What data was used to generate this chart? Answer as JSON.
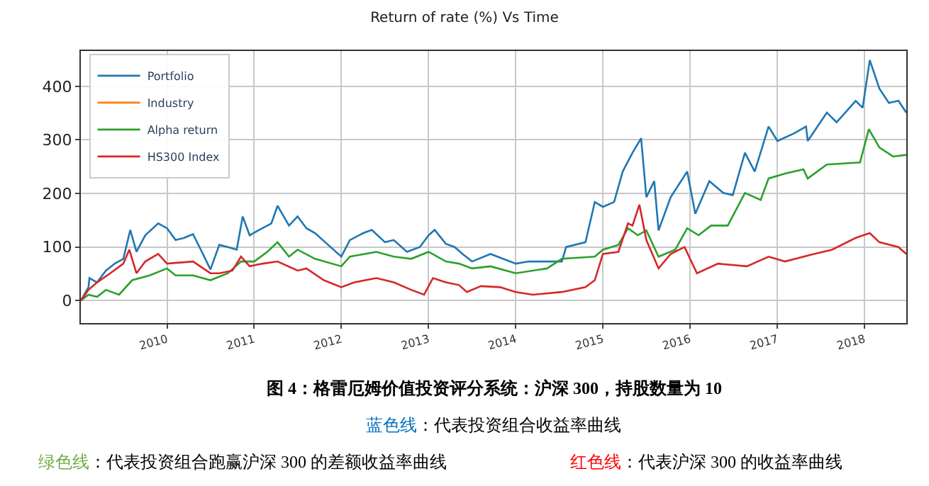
{
  "chart_data": {
    "type": "line",
    "title": "Return of rate (%) Vs Time",
    "xlim": [
      "2009-01-05",
      "2018-06-25"
    ],
    "xticks": [
      "2010",
      "2011",
      "2012",
      "2013",
      "2014",
      "2015",
      "2016",
      "2017",
      "2018"
    ],
    "ylim": [
      -42,
      466
    ],
    "yticks": [
      0,
      100,
      200,
      300,
      400
    ],
    "grid": true,
    "legend": "top left",
    "series": [
      {
        "name": "Portfolio",
        "color": "#1f77b4",
        "x": [
          "2009-01-05",
          "2009-02-06",
          "2009-02-10",
          "2009-03-14",
          "2009-04-20",
          "2009-05-27",
          "2009-07-02",
          "2009-07-31",
          "2009-08-26",
          "2009-10-02",
          "2009-11-25",
          "2010-01-01",
          "2010-02-06",
          "2010-03-14",
          "2010-04-20",
          "2010-05-27",
          "2010-07-02",
          "2010-08-08",
          "2010-09-13",
          "2010-10-20",
          "2010-11-14",
          "2010-12-13",
          "2011-01-19",
          "2011-03-14",
          "2011-04-09",
          "2011-05-27",
          "2011-07-02",
          "2011-08-08",
          "2011-09-13",
          "2011-11-07",
          "2012-01-01",
          "2012-02-06",
          "2012-04-02",
          "2012-05-08",
          "2012-07-02",
          "2012-08-08",
          "2012-10-02",
          "2012-11-25",
          "2013-01-01",
          "2013-01-26",
          "2013-03-14",
          "2013-04-20",
          "2013-05-23",
          "2013-07-02",
          "2013-09-17",
          "2014-01-01",
          "2014-02-25",
          "2014-04-24",
          "2014-07-13",
          "2014-07-31",
          "2014-10-20",
          "2014-11-28",
          "2015-01-01",
          "2015-02-17",
          "2015-03-25",
          "2015-05-05",
          "2015-06-10",
          "2015-07-02",
          "2015-08-04",
          "2015-08-22",
          "2015-10-12",
          "2015-12-20",
          "2016-01-23",
          "2016-03-22",
          "2016-05-19",
          "2016-06-28",
          "2016-08-18",
          "2016-09-28",
          "2016-11-25",
          "2017-01-01",
          "2017-03-11",
          "2017-05-01",
          "2017-05-08",
          "2017-07-27",
          "2017-09-06",
          "2017-11-25",
          "2017-12-24",
          "2018-01-23",
          "2018-03-04",
          "2018-04-13",
          "2018-05-23",
          "2018-06-25"
        ],
        "values": [
          0,
          25,
          42,
          34,
          56,
          69,
          78,
          132,
          91,
          122,
          144,
          135,
          113,
          117,
          124,
          91,
          58,
          104,
          100,
          95,
          157,
          122,
          131,
          144,
          177,
          140,
          157,
          135,
          126,
          104,
          82,
          113,
          126,
          132,
          109,
          113,
          91,
          100,
          122,
          132,
          106,
          100,
          87,
          73,
          87,
          69,
          73,
          73,
          73,
          100,
          109,
          184,
          175,
          184,
          241,
          276,
          303,
          193,
          223,
          131,
          193,
          241,
          162,
          223,
          201,
          197,
          276,
          241,
          325,
          298,
          312,
          325,
          298,
          351,
          333,
          373,
          360,
          449,
          396,
          369,
          373,
          351
        ]
      },
      {
        "name": "Industry",
        "color": "#ff7f0e"
      },
      {
        "name": "Alpha return",
        "color": "#2ca02c",
        "x": [
          "2009-01-05",
          "2009-02-06",
          "2009-03-14",
          "2009-04-20",
          "2009-06-14",
          "2009-08-08",
          "2009-10-20",
          "2010-01-01",
          "2010-02-06",
          "2010-04-20",
          "2010-07-02",
          "2010-09-13",
          "2010-11-07",
          "2011-01-01",
          "2011-02-25",
          "2011-04-09",
          "2011-05-27",
          "2011-07-02",
          "2011-09-13",
          "2012-01-01",
          "2012-02-06",
          "2012-05-27",
          "2012-08-08",
          "2012-10-20",
          "2013-01-01",
          "2013-03-14",
          "2013-05-08",
          "2013-07-02",
          "2013-09-17",
          "2014-01-01",
          "2014-05-12",
          "2014-07-13",
          "2014-11-28",
          "2015-01-01",
          "2015-03-07",
          "2015-04-16",
          "2015-05-27",
          "2015-07-02",
          "2015-08-22",
          "2015-10-31",
          "2015-12-20",
          "2016-02-06",
          "2016-03-29",
          "2016-06-07",
          "2016-08-18",
          "2016-10-23",
          "2016-11-25",
          "2017-02-02",
          "2017-04-20",
          "2017-05-08",
          "2017-07-27",
          "2017-12-13",
          "2018-01-19",
          "2018-03-04",
          "2018-05-01",
          "2018-06-25"
        ],
        "values": [
          0,
          11,
          7,
          20,
          11,
          38,
          47,
          60,
          47,
          47,
          38,
          51,
          73,
          73,
          91,
          109,
          82,
          95,
          78,
          64,
          82,
          91,
          82,
          78,
          91,
          73,
          69,
          60,
          64,
          51,
          60,
          78,
          82,
          95,
          104,
          135,
          122,
          131,
          82,
          95,
          135,
          122,
          140,
          140,
          201,
          188,
          228,
          237,
          245,
          228,
          254,
          258,
          320,
          286,
          269,
          272
        ]
      },
      {
        "name": "HS300 Index",
        "color": "#d62728",
        "x": [
          "2009-01-05",
          "2009-02-06",
          "2009-03-14",
          "2009-05-08",
          "2009-07-02",
          "2009-07-27",
          "2009-08-26",
          "2009-10-02",
          "2009-11-25",
          "2010-01-01",
          "2010-04-20",
          "2010-07-02",
          "2010-08-08",
          "2010-10-02",
          "2010-11-07",
          "2010-12-13",
          "2011-02-06",
          "2011-04-09",
          "2011-07-02",
          "2011-08-08",
          "2011-10-20",
          "2012-01-01",
          "2012-02-25",
          "2012-05-27",
          "2012-08-08",
          "2012-10-20",
          "2012-12-13",
          "2013-01-19",
          "2013-03-14",
          "2013-05-08",
          "2013-06-10",
          "2013-08-08",
          "2013-10-27",
          "2014-01-01",
          "2014-03-14",
          "2014-07-13",
          "2014-10-20",
          "2014-11-28",
          "2015-01-01",
          "2015-03-07",
          "2015-04-16",
          "2015-05-05",
          "2015-06-03",
          "2015-07-02",
          "2015-08-22",
          "2015-10-12",
          "2015-12-09",
          "2016-01-30",
          "2016-04-27",
          "2016-08-26",
          "2016-11-25",
          "2017-02-02",
          "2017-06-03",
          "2017-08-18",
          "2017-11-25",
          "2018-01-23",
          "2018-03-04",
          "2018-05-23",
          "2018-06-25"
        ],
        "values": [
          0,
          20,
          34,
          51,
          69,
          95,
          51,
          73,
          87,
          69,
          73,
          51,
          51,
          56,
          82,
          64,
          69,
          73,
          56,
          60,
          38,
          25,
          34,
          42,
          34,
          20,
          11,
          42,
          34,
          29,
          16,
          27,
          25,
          16,
          11,
          16,
          25,
          38,
          87,
          91,
          144,
          140,
          179,
          113,
          60,
          87,
          100,
          51,
          69,
          64,
          82,
          73,
          87,
          95,
          117,
          126,
          109,
          100,
          87
        ]
      }
    ],
    "annotations": [
      "图 4：格雷厄姆价值投资评分系统：沪深 300，持股数量为 10",
      "蓝色线：代表投资组合收益率曲线",
      "绿色线：代表投资组合跑赢沪深 300 的差额收益率曲线",
      "红色线：代表沪深 300 的收益率曲线"
    ]
  }
}
